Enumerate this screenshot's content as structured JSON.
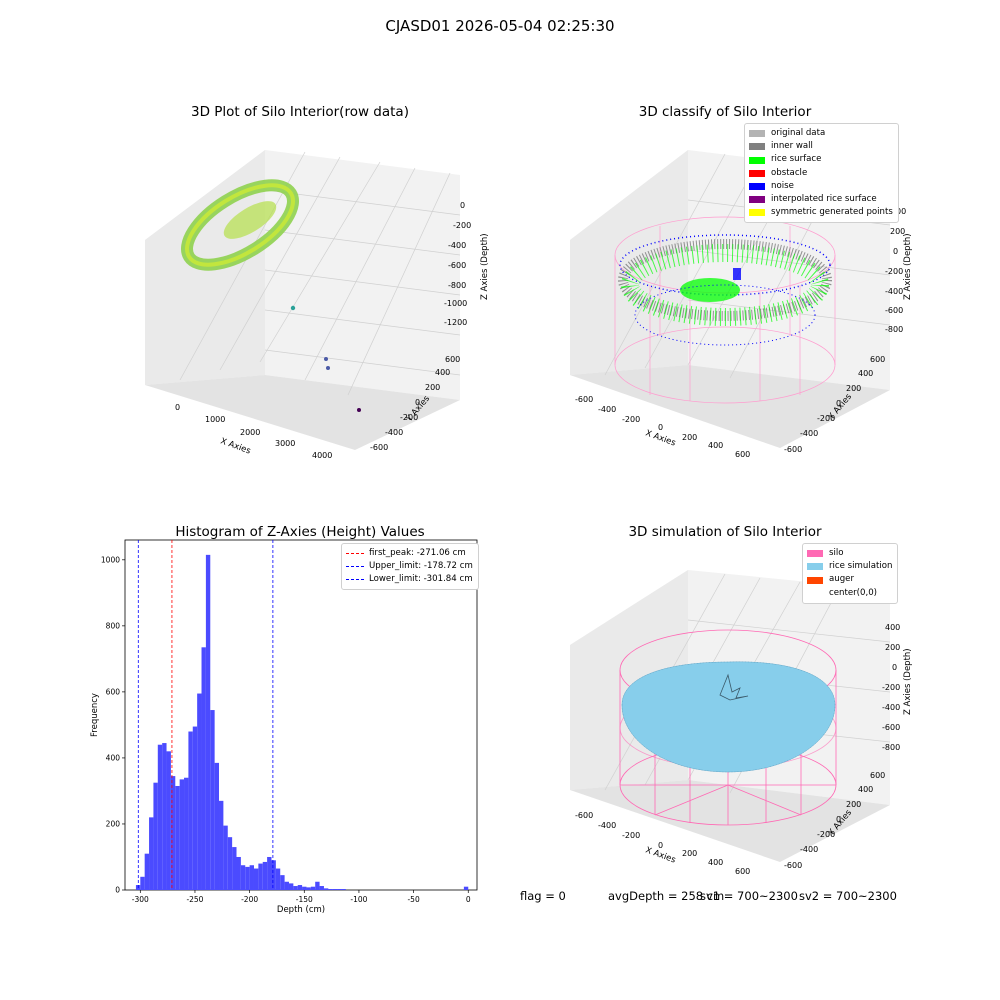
{
  "figure": {
    "suptitle": "CJASD01 2026-05-04 02:25:30"
  },
  "panels": {
    "raw": {
      "title": "3D Plot of Silo Interior(row data)",
      "xlabel": "X Axies",
      "ylabel": "Y Axies",
      "zlabel": "Z Axies (Depth)",
      "xticks": [
        "0",
        "1000",
        "2000",
        "3000",
        "4000"
      ],
      "yticks": [
        "-600",
        "-400",
        "-200",
        "0",
        "200",
        "400",
        "600"
      ],
      "zticks": [
        "0",
        "-200",
        "-400",
        "-600",
        "-800",
        "-1000",
        "-1200"
      ]
    },
    "classify": {
      "title": "3D classify of Silo Interior",
      "xlabel": "X Axies",
      "ylabel": "Y Axies",
      "zlabel": "Z Axies (Depth)",
      "xticks": [
        "-600",
        "-400",
        "-200",
        "0",
        "200",
        "400",
        "600"
      ],
      "yticks": [
        "-600",
        "-400",
        "-200",
        "0",
        "200",
        "400",
        "600"
      ],
      "zticks": [
        "200",
        "0",
        "-200",
        "-400",
        "-600",
        "-800"
      ],
      "partial_tick": "00",
      "legend": [
        {
          "label": "original data",
          "color": "#b3b3b3"
        },
        {
          "label": "inner wall",
          "color": "#808080"
        },
        {
          "label": "rice surface",
          "color": "#00ff00"
        },
        {
          "label": "obstacle",
          "color": "#ff0000"
        },
        {
          "label": "noise",
          "color": "#0000ff"
        },
        {
          "label": "interpolated rice surface",
          "color": "#800080"
        },
        {
          "label": "symmetric generated points",
          "color": "#ffff00"
        }
      ]
    },
    "simulation": {
      "title": "3D simulation of Silo Interior",
      "xlabel": "X Axies",
      "ylabel": "Y Axies",
      "zlabel": "Z Axies (Depth)",
      "xticks": [
        "-600",
        "-400",
        "-200",
        "0",
        "200",
        "400",
        "600"
      ],
      "yticks": [
        "-600",
        "-400",
        "-200",
        "0",
        "200",
        "400",
        "600"
      ],
      "zticks": [
        "400",
        "200",
        "0",
        "-200",
        "-400",
        "-600",
        "-800"
      ],
      "legend": [
        {
          "label": "silo",
          "color": "#ff69b4"
        },
        {
          "label": "rice simulation",
          "color": "#87ceeb"
        },
        {
          "label": "auger",
          "color": "#ff4500"
        },
        {
          "label": "center(0,0)",
          "color": "#ffffff"
        }
      ]
    }
  },
  "status": {
    "flag": "flag = 0",
    "avg": "avgDepth = 258 cm",
    "sv1": "sv1 = 700~2300",
    "sv2": "sv2 = 700~2300"
  },
  "chart_data": {
    "type": "bar",
    "title": "Histogram of Z-Axies (Height) Values",
    "xlabel": "Depth (cm)",
    "ylabel": "Frequency",
    "xlim": [
      -314,
      8
    ],
    "ylim": [
      0,
      1060
    ],
    "xticks": [
      -300,
      -250,
      -200,
      -150,
      -100,
      -50,
      0
    ],
    "yticks": [
      0,
      200,
      400,
      600,
      800,
      1000
    ],
    "bar_color": "#4b4bff",
    "bins": [
      [
        -304,
        -300,
        15
      ],
      [
        -300,
        -296,
        40
      ],
      [
        -296,
        -292,
        110
      ],
      [
        -292,
        -288,
        220
      ],
      [
        -288,
        -284,
        325
      ],
      [
        -284,
        -280,
        440
      ],
      [
        -280,
        -276,
        445
      ],
      [
        -276,
        -272,
        420
      ],
      [
        -272,
        -268,
        345
      ],
      [
        -268,
        -264,
        315
      ],
      [
        -264,
        -260,
        335
      ],
      [
        -260,
        -256,
        340
      ],
      [
        -256,
        -252,
        480
      ],
      [
        -252,
        -248,
        495
      ],
      [
        -248,
        -244,
        595
      ],
      [
        -244,
        -240,
        735
      ],
      [
        -240,
        -236,
        1015
      ],
      [
        -236,
        -232,
        545
      ],
      [
        -232,
        -228,
        385
      ],
      [
        -228,
        -224,
        270
      ],
      [
        -224,
        -220,
        195
      ],
      [
        -220,
        -216,
        160
      ],
      [
        -216,
        -212,
        130
      ],
      [
        -212,
        -208,
        100
      ],
      [
        -208,
        -204,
        75
      ],
      [
        -204,
        -200,
        70
      ],
      [
        -200,
        -196,
        75
      ],
      [
        -196,
        -192,
        65
      ],
      [
        -192,
        -188,
        80
      ],
      [
        -188,
        -184,
        85
      ],
      [
        -184,
        -180,
        100
      ],
      [
        -180,
        -176,
        90
      ],
      [
        -176,
        -172,
        65
      ],
      [
        -172,
        -168,
        45
      ],
      [
        -168,
        -164,
        25
      ],
      [
        -164,
        -160,
        20
      ],
      [
        -160,
        -156,
        12
      ],
      [
        -156,
        -152,
        15
      ],
      [
        -152,
        -148,
        10
      ],
      [
        -148,
        -144,
        8
      ],
      [
        -144,
        -140,
        10
      ],
      [
        -140,
        -136,
        25
      ],
      [
        -136,
        -132,
        12
      ],
      [
        -132,
        -128,
        5
      ],
      [
        -128,
        -124,
        3
      ],
      [
        -124,
        -120,
        3
      ],
      [
        -120,
        -116,
        3
      ],
      [
        -116,
        -112,
        3
      ],
      [
        -4,
        0,
        10
      ]
    ],
    "vlines": [
      {
        "x": -271.06,
        "color": "#ff0000",
        "label": "first_peak: -271.06 cm"
      },
      {
        "x": -178.72,
        "color": "#0000ff",
        "label": "Upper_limit: -178.72 cm"
      },
      {
        "x": -301.84,
        "color": "#0000ff",
        "label": "Lower_limit: -301.84 cm"
      }
    ]
  }
}
